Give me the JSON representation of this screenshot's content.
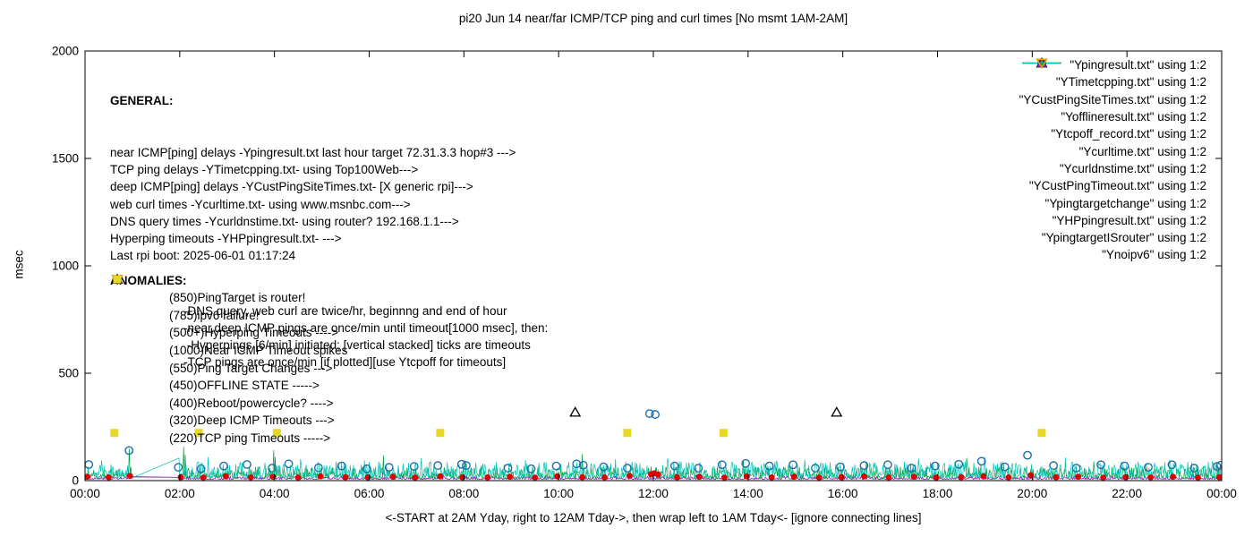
{
  "chart_data": {
    "type": "line+scatter",
    "title": "pi20 Jun 14  near/far ICMP/TCP ping and curl times [No msmt 1AM-2AM]",
    "ylabel": "msec",
    "xlabel": "<-START at 2AM Yday, right to 12AM Tday->, then wrap left to 1AM Tday<- [ignore connecting lines]",
    "ylim": [
      0,
      2000
    ],
    "xlim_hours": [
      0,
      24
    ],
    "yticks": [
      0,
      500,
      1000,
      1500,
      2000
    ],
    "xtick_labels": [
      "00:00",
      "02:00",
      "04:00",
      "06:00",
      "08:00",
      "10:00",
      "12:00",
      "14:00",
      "16:00",
      "18:00",
      "20:00",
      "22:00",
      "00:00"
    ],
    "gap_hours": [
      1,
      2
    ],
    "noise_lines": [
      {
        "name": "Ypingresult",
        "color": "#9400d3",
        "base": 6,
        "amp": 14,
        "seed": 3,
        "spikes": []
      },
      {
        "name": "YTimetcpping",
        "color": "#00a040",
        "base": 10,
        "amp": 55,
        "seed": 11,
        "spikes": [
          [
            0.93,
            148
          ],
          [
            2.08,
            158
          ],
          [
            2.12,
            120
          ],
          [
            3.98,
            142
          ],
          [
            4.02,
            110
          ],
          [
            6.3,
            118
          ],
          [
            8.02,
            96
          ],
          [
            10.5,
            124
          ],
          [
            13.9,
            94
          ],
          [
            16.5,
            88
          ],
          [
            18.62,
            106
          ],
          [
            21.3,
            90
          ],
          [
            23.9,
            84
          ]
        ]
      },
      {
        "name": "YCustPingSiteTimes",
        "color": "#00c2b2",
        "base": 14,
        "amp": 75,
        "seed": 27,
        "spikes": [
          [
            0.35,
            92
          ],
          [
            1.99,
            105
          ],
          [
            2.6,
            110
          ],
          [
            4.55,
            100
          ],
          [
            5.9,
            94
          ],
          [
            7.1,
            104
          ],
          [
            9.3,
            96
          ],
          [
            11.2,
            100
          ],
          [
            12.3,
            104
          ],
          [
            14.6,
            92
          ],
          [
            15.2,
            98
          ],
          [
            17.6,
            102
          ],
          [
            19.0,
            110
          ],
          [
            20.7,
            108
          ],
          [
            22.9,
            96
          ],
          [
            23.8,
            90
          ]
        ]
      }
    ],
    "scatter": [
      {
        "name": "Ycurltime",
        "marker": "open-circle",
        "color": "#1a6fad",
        "points": [
          [
            0.08,
            75
          ],
          [
            0.93,
            140
          ],
          [
            1.97,
            62
          ],
          [
            2.45,
            55
          ],
          [
            2.93,
            68
          ],
          [
            3.42,
            75
          ],
          [
            3.95,
            58
          ],
          [
            4.3,
            78
          ],
          [
            4.93,
            60
          ],
          [
            5.42,
            68
          ],
          [
            5.95,
            55
          ],
          [
            6.42,
            62
          ],
          [
            6.95,
            66
          ],
          [
            7.45,
            70
          ],
          [
            7.95,
            76
          ],
          [
            8.05,
            70
          ],
          [
            8.93,
            58
          ],
          [
            9.42,
            55
          ],
          [
            9.95,
            68
          ],
          [
            10.38,
            78
          ],
          [
            10.52,
            72
          ],
          [
            10.95,
            64
          ],
          [
            11.45,
            58
          ],
          [
            11.92,
            312
          ],
          [
            12.04,
            308
          ],
          [
            12.45,
            68
          ],
          [
            12.95,
            58
          ],
          [
            13.45,
            74
          ],
          [
            13.95,
            80
          ],
          [
            14.45,
            68
          ],
          [
            14.95,
            74
          ],
          [
            15.42,
            58
          ],
          [
            15.95,
            64
          ],
          [
            16.45,
            70
          ],
          [
            16.95,
            74
          ],
          [
            17.45,
            58
          ],
          [
            17.95,
            68
          ],
          [
            18.45,
            76
          ],
          [
            18.93,
            90
          ],
          [
            19.42,
            64
          ],
          [
            19.9,
            118
          ],
          [
            20.45,
            70
          ],
          [
            20.93,
            58
          ],
          [
            21.45,
            74
          ],
          [
            21.95,
            68
          ],
          [
            22.45,
            62
          ],
          [
            22.95,
            74
          ],
          [
            23.42,
            58
          ],
          [
            23.9,
            66
          ],
          [
            23.98,
            72
          ]
        ]
      },
      {
        "name": "Ycurldnstime",
        "marker": "filled-circle",
        "color": "#e00000",
        "points": [
          [
            0.05,
            18
          ],
          [
            0.5,
            15
          ],
          [
            0.95,
            22
          ],
          [
            2.02,
            16
          ],
          [
            2.5,
            14
          ],
          [
            2.97,
            20
          ],
          [
            3.5,
            15
          ],
          [
            3.97,
            18
          ],
          [
            4.5,
            14
          ],
          [
            4.97,
            20
          ],
          [
            5.5,
            16
          ],
          [
            5.97,
            15
          ],
          [
            6.5,
            18
          ],
          [
            6.97,
            14
          ],
          [
            7.5,
            20
          ],
          [
            7.97,
            16
          ],
          [
            8.5,
            15
          ],
          [
            8.97,
            18
          ],
          [
            9.5,
            14
          ],
          [
            9.97,
            20
          ],
          [
            10.5,
            16
          ],
          [
            10.97,
            15
          ],
          [
            11.5,
            22
          ],
          [
            11.95,
            30
          ],
          [
            12.02,
            34
          ],
          [
            12.1,
            28
          ],
          [
            12.5,
            16
          ],
          [
            12.97,
            18
          ],
          [
            13.5,
            14
          ],
          [
            13.97,
            20
          ],
          [
            14.5,
            15
          ],
          [
            14.97,
            18
          ],
          [
            15.5,
            14
          ],
          [
            15.97,
            16
          ],
          [
            16.45,
            20
          ],
          [
            16.97,
            15
          ],
          [
            17.5,
            18
          ],
          [
            17.97,
            14
          ],
          [
            18.5,
            16
          ],
          [
            18.97,
            20
          ],
          [
            19.5,
            15
          ],
          [
            19.97,
            25
          ],
          [
            20.5,
            16
          ],
          [
            20.97,
            18
          ],
          [
            21.5,
            14
          ],
          [
            21.97,
            16
          ],
          [
            22.5,
            15
          ],
          [
            22.97,
            18
          ],
          [
            23.5,
            14
          ],
          [
            23.95,
            16
          ]
        ]
      },
      {
        "name": "Ytcpoff_record",
        "marker": "filled-square",
        "color": "#e6d825",
        "points": [
          [
            0.62,
            222
          ],
          [
            2.4,
            222
          ],
          [
            4.05,
            222
          ],
          [
            7.5,
            222
          ],
          [
            11.45,
            222
          ],
          [
            13.48,
            222
          ],
          [
            20.2,
            222
          ]
        ]
      },
      {
        "name": "YCustPingTimeout",
        "marker": "open-triangle-up",
        "color": "#000000",
        "points": [
          [
            10.35,
            318
          ],
          [
            15.87,
            318
          ]
        ]
      }
    ]
  },
  "legend": {
    "items": [
      {
        "label": "\"Ypingresult.txt\" using 1:2",
        "marker": "line",
        "color": "#9400d3"
      },
      {
        "label": "\"YTimetcpping.txt\" using 1:2",
        "marker": "line",
        "color": "#00a040"
      },
      {
        "label": "\"YCustPingSiteTimes.txt\" using 1:2",
        "marker": "line",
        "color": "#00c2b2"
      },
      {
        "label": "\"Yofflineresult.txt\" using 1:2",
        "marker": "open-square",
        "color": "#ff9000"
      },
      {
        "label": "\"Ytcpoff_record.txt\" using 1:2",
        "marker": "filled-square",
        "color": "#e6d825"
      },
      {
        "label": "\"Ycurltime.txt\" using 1:2",
        "marker": "open-circle",
        "color": "#1a6fad"
      },
      {
        "label": "\"Ycurldnstime.txt\" using 1:2",
        "marker": "filled-circle",
        "color": "#e00000"
      },
      {
        "label": "\"YCustPingTimeout.txt\" using 1:2",
        "marker": "open-triangle-up",
        "color": "#000000"
      },
      {
        "label": "\"Ypingtargetchange\" using 1:2",
        "marker": "filled-triangle-up",
        "color": "#a020c0"
      },
      {
        "label": "\"YHPpingresult.txt\" using 1:2",
        "marker": "plus",
        "color": "#00b080"
      },
      {
        "label": "\"YpingtargetISrouter\" using 1:2",
        "marker": "open-triangle-down",
        "color": "#00c8d7"
      },
      {
        "label": "\"Ynoipv6\" using 1:2",
        "marker": "open-triangle-down",
        "color": "#ff9000"
      }
    ]
  },
  "notes": {
    "general_header": "GENERAL:",
    "general_lines": [
      "near ICMP[ping] delays -Ypingresult.txt last hour target 72.31.3.3 hop#3 --->",
      "TCP ping delays -YTimetcpping.txt- using Top100Web--->",
      "deep ICMP[ping] delays -YCustPingSiteTimes.txt- [X generic rpi]--->",
      "web curl times -Ycurltime.txt- using www.msnbc.com--->",
      "DNS query times -Ycurldnstime.txt- using router? 192.168.1.1--->",
      "Hyperping timeouts -YHPpingresult.txt- --->",
      "Last rpi boot: 2025-06-01 01:17:24"
    ],
    "general_indented_lines": [
      "-DNS query, web curl are twice/hr, beginnng and end of hour",
      "-near,deep ICMP pings are once/min until timeout[1000 msec], then:",
      " -Hyperpings [6/min] initiated; [vertical stacked] ticks are timeouts",
      "-TCP pings are once/min [if plotted][use Ytcpoff for timeouts]"
    ],
    "anomalies_header": "ANOMALIES:",
    "anomalies": [
      {
        "marker": "open-triangle-down",
        "color": "#00c8d7",
        "text": "(850)PingTarget is router!"
      },
      {
        "marker": "open-triangle-down",
        "color": "#ff9000",
        "text": "(785)ipv6 failure!"
      },
      {
        "marker": "plus",
        "color": "#00b080",
        "text": "(500+)Hyperping Timeouts ---->"
      },
      {
        "marker": "none",
        "color": "#000000",
        "text": "(1000)Near ICMP Timeout spikes"
      },
      {
        "marker": "filled-triangle-up",
        "color": "#a020c0",
        "text": "(550)Ping Target Changes --->"
      },
      {
        "marker": "open-square",
        "color": "#ff9000",
        "text": "(450)OFFLINE STATE ----->"
      },
      {
        "marker": "none",
        "color": "#000000",
        "text": "(400)Reboot/powercycle? ---->"
      },
      {
        "marker": "open-triangle-up",
        "color": "#000000",
        "text": "(320)Deep ICMP Timeouts --->"
      },
      {
        "marker": "filled-square",
        "color": "#e6d825",
        "text": "(220)TCP ping Timeouts ----->"
      }
    ]
  }
}
